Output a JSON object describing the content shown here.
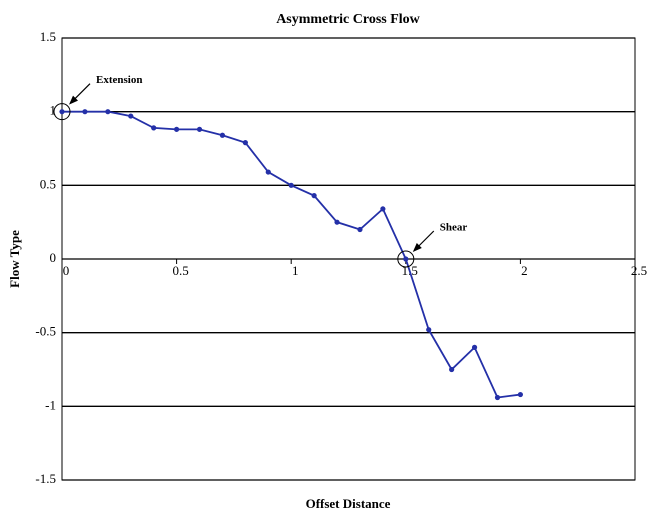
{
  "chart_data": {
    "type": "line",
    "title": "Asymmetric Cross Flow",
    "x_label": "Offset Distance",
    "y_label": "Flow Type",
    "x": [
      0,
      0.1,
      0.2,
      0.3,
      0.4,
      0.5,
      0.6,
      0.7,
      0.8,
      0.9,
      1.0,
      1.1,
      1.2,
      1.3,
      1.4,
      1.5,
      1.6,
      1.7,
      1.8,
      1.9,
      2.0
    ],
    "series": [
      {
        "color": "#2430a8",
        "values": [
          1.0,
          1.0,
          1.0,
          0.97,
          0.89,
          0.88,
          0.88,
          0.84,
          0.79,
          0.59,
          0.5,
          0.43,
          0.25,
          0.2,
          0.34,
          0.0,
          -0.48,
          -0.75,
          -0.6,
          -0.94,
          -0.92
        ]
      }
    ],
    "xlim": [
      0,
      2.5
    ],
    "xticks": [
      0,
      0.5,
      1,
      1.5,
      2,
      2.5
    ],
    "ylim": [
      -1.5,
      1.5
    ],
    "yticks": [
      1.5,
      1,
      0.5,
      0,
      -0.5,
      -1,
      -1.5
    ],
    "grid": true,
    "annotations": [
      {
        "text": "Extension",
        "x": 0,
        "y": 1
      },
      {
        "text": "Shear",
        "x": 1.5,
        "y": 0
      }
    ]
  }
}
